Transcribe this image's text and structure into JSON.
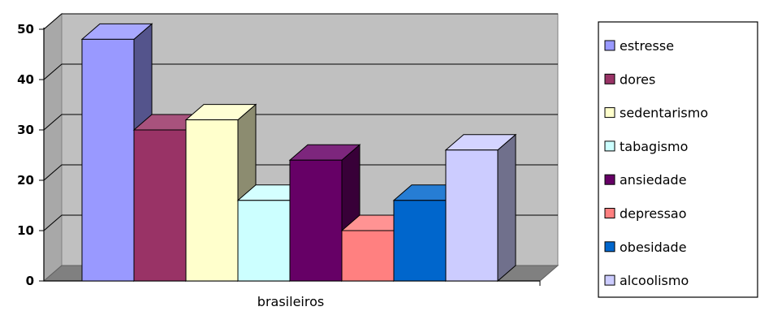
{
  "chart_data": {
    "type": "bar",
    "categories": [
      "brasileiros"
    ],
    "series": [
      {
        "name": "estresse",
        "values": [
          48
        ],
        "color": "#9999ff"
      },
      {
        "name": "dores",
        "values": [
          30
        ],
        "color": "#993366"
      },
      {
        "name": "sedentarismo",
        "values": [
          32
        ],
        "color": "#ffffcc"
      },
      {
        "name": "tabagismo",
        "values": [
          16
        ],
        "color": "#ccffff"
      },
      {
        "name": "ansiedade",
        "values": [
          24
        ],
        "color": "#660066"
      },
      {
        "name": "depressao",
        "values": [
          10
        ],
        "color": "#ff8080"
      },
      {
        "name": "obesidade",
        "values": [
          16
        ],
        "color": "#0066cc"
      },
      {
        "name": "alcoolismo",
        "values": [
          26
        ],
        "color": "#ccccff"
      }
    ],
    "yticks": [
      "0",
      "10",
      "20",
      "30",
      "40",
      "50"
    ],
    "ylim": [
      0,
      50
    ],
    "grid": true,
    "legend": "right",
    "three_d": true,
    "title": "",
    "xlabel": "",
    "ylabel": ""
  }
}
